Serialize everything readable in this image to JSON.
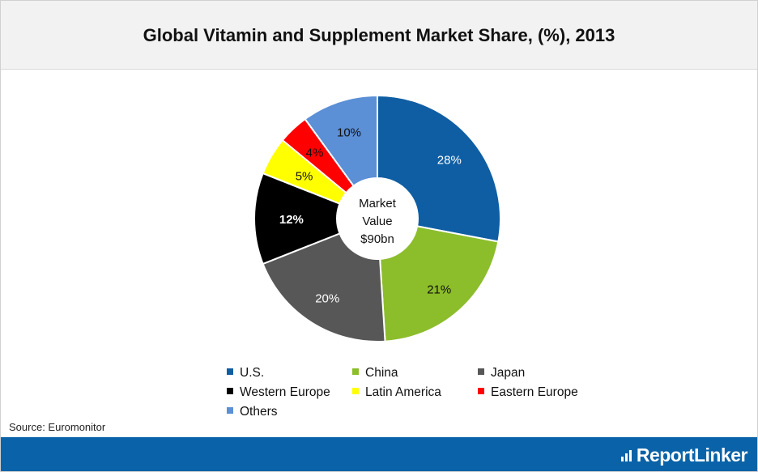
{
  "title": "Global Vitamin and Supplement Market Share, (%), 2013",
  "source": "Source: Euromonitor",
  "brand": "ReportLinker",
  "chart_data": {
    "type": "pie",
    "title": "Global Vitamin and Supplement Market Share, (%), 2013",
    "center_label": [
      "Market",
      "Value",
      "$90bn"
    ],
    "legend_position": "bottom",
    "categories": [
      "U.S.",
      "China",
      "Japan",
      "Western Europe",
      "Latin America",
      "Eastern Europe",
      "Others"
    ],
    "values": [
      28,
      21,
      20,
      12,
      5,
      4,
      10
    ],
    "labels": [
      "28%",
      "21%",
      "20%",
      "12%",
      "5%",
      "4%",
      "10%"
    ],
    "colors": [
      "#0f5ea3",
      "#8cbd2b",
      "#575757",
      "#000000",
      "#ffff00",
      "#ff0000",
      "#5b8fd6"
    ]
  }
}
